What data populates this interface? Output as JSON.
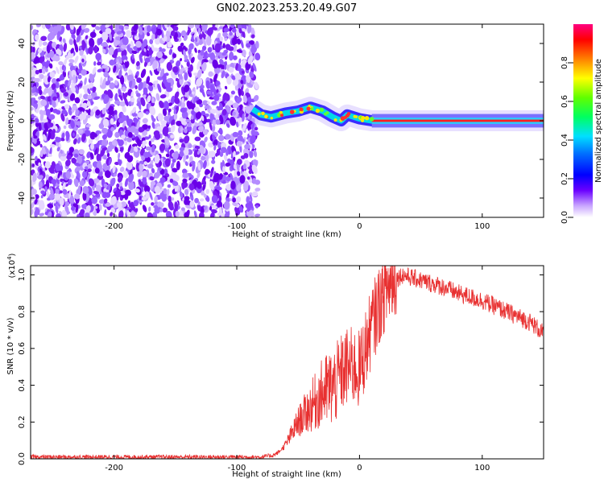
{
  "title": "GN02.2023.253.20.49.G07",
  "chart_data": [
    {
      "type": "heatmap",
      "xlabel": "Height of straight line (km)",
      "ylabel": "Frequency (Hz)",
      "xlim": [
        -268,
        150
      ],
      "ylim": [
        -50,
        50
      ],
      "x_ticks": [
        -200,
        -100,
        0,
        100
      ],
      "x_tick_labels": [
        "-200",
        "-100",
        "0",
        "100"
      ],
      "y_ticks": [
        -40,
        -20,
        0,
        20,
        40
      ],
      "y_tick_labels": [
        "-40",
        "-20",
        "0",
        "20",
        "40"
      ],
      "noise_region_x": [
        -268,
        -83
      ],
      "signal_region_x": [
        -83,
        150
      ],
      "ridge": [
        {
          "x": -87,
          "y": 6
        },
        {
          "x": -80,
          "y": 3
        },
        {
          "x": -72,
          "y": 2
        },
        {
          "x": -60,
          "y": 4
        },
        {
          "x": -50,
          "y": 5
        },
        {
          "x": -40,
          "y": 7
        },
        {
          "x": -30,
          "y": 5
        },
        {
          "x": -22,
          "y": 2
        },
        {
          "x": -15,
          "y": 0
        },
        {
          "x": -10,
          "y": 3
        },
        {
          "x": -5,
          "y": 2
        },
        {
          "x": 0,
          "y": 1
        },
        {
          "x": 10,
          "y": 0
        },
        {
          "x": 150,
          "y": 0
        }
      ],
      "colorbar": {
        "label": "Normalized spectral amplitude",
        "range": [
          0,
          1
        ],
        "ticks": [
          0.0,
          0.2,
          0.4,
          0.6,
          0.8
        ],
        "tick_labels": [
          "0.0",
          "0.2",
          "0.4",
          "0.6",
          "0.8"
        ]
      },
      "colors": {
        "noise": "#7a1bf0",
        "low": "#2020ff",
        "mid": "#00e0e0",
        "high": "#ff2a2a"
      }
    },
    {
      "type": "line",
      "xlabel": "Height of straight line (km)",
      "ylabel": "SNR (10 * v/v)",
      "multiplier_label": "(x10",
      "multiplier_exp": "4",
      "multiplier_close": ")",
      "xlim": [
        -268,
        150
      ],
      "ylim": [
        0,
        1.05
      ],
      "x_ticks": [
        -200,
        -100,
        0,
        100
      ],
      "x_tick_labels": [
        "-200",
        "-100",
        "0",
        "100"
      ],
      "y_ticks": [
        0.0,
        0.2,
        0.4,
        0.6,
        0.8,
        1.0
      ],
      "y_tick_labels": [
        "0.0",
        "0.2",
        "0.4",
        "0.6",
        "0.8",
        "1.0"
      ],
      "series": [
        {
          "color": "#e83030",
          "x": [
            -268,
            -200,
            -120,
            -80,
            -70,
            -65,
            -60,
            -55,
            -50,
            -45,
            -40,
            -35,
            -30,
            -25,
            -20,
            -15,
            -10,
            -5,
            0,
            5,
            10,
            15,
            20,
            25,
            30,
            35,
            40,
            50,
            60,
            70,
            80,
            90,
            100,
            110,
            120,
            130,
            140,
            150
          ],
          "y": [
            0.01,
            0.01,
            0.01,
            0.01,
            0.02,
            0.04,
            0.08,
            0.14,
            0.2,
            0.24,
            0.28,
            0.32,
            0.36,
            0.38,
            0.4,
            0.46,
            0.5,
            0.5,
            0.48,
            0.6,
            0.72,
            0.82,
            0.9,
            0.95,
            0.98,
            1.0,
            0.99,
            0.97,
            0.95,
            0.93,
            0.9,
            0.88,
            0.86,
            0.83,
            0.8,
            0.77,
            0.74,
            0.68
          ]
        }
      ]
    }
  ]
}
